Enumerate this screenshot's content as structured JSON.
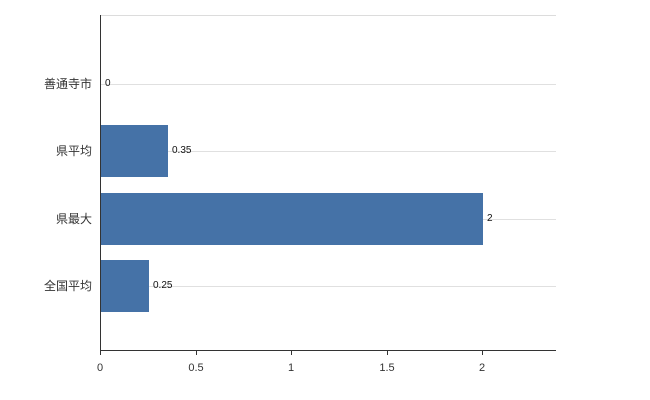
{
  "chart_data": {
    "type": "bar",
    "orientation": "horizontal",
    "title": "",
    "categories": [
      "善通寺市",
      "県平均",
      "県最大",
      "全国平均"
    ],
    "values": [
      0,
      0.35,
      2,
      0.25
    ],
    "value_labels": [
      "0",
      "0.35",
      "2",
      "0.25"
    ],
    "x_ticks": [
      0,
      0.5,
      1,
      1.5,
      2
    ],
    "x_tick_labels": [
      "0",
      "0.5",
      "1",
      "1.5",
      "2"
    ],
    "xlim": [
      0,
      2.4
    ],
    "bar_color": "#4572a7",
    "grid": "light horizontal gridlines at category centers, top plot border",
    "legend": "none"
  }
}
